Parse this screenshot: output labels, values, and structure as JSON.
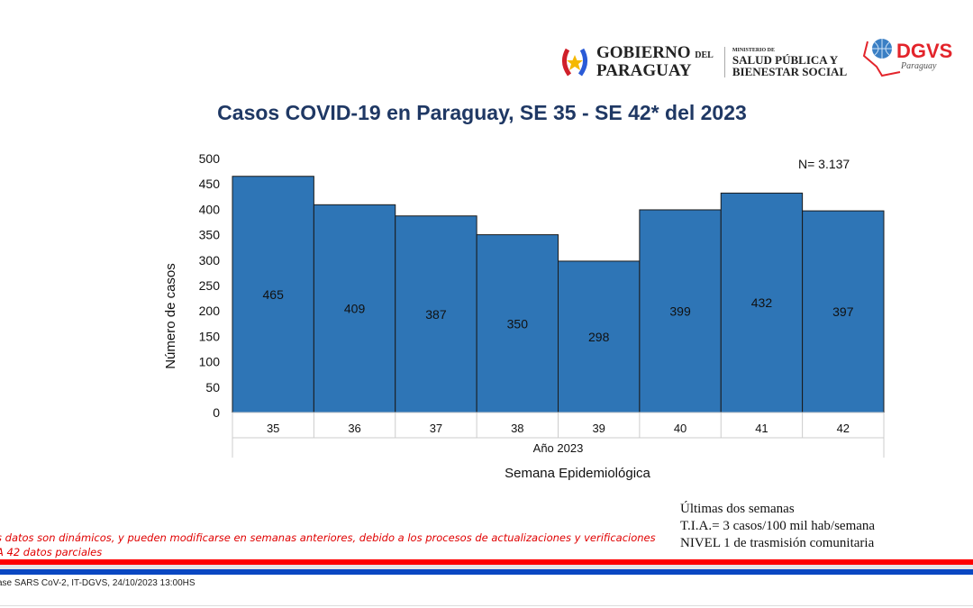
{
  "header": {
    "gov_logo": {
      "line1": "GOBIERNO",
      "line1b": "DEL",
      "line2": "PARAGUAY"
    },
    "ministry": {
      "small": "MINISTERIO DE",
      "line1": "SALUD PÚBLICA Y",
      "line2": "BIENESTAR SOCIAL"
    },
    "dgvs_logo": {
      "name": "DGVS",
      "sub": "Paraguay"
    }
  },
  "chart_data": {
    "type": "bar",
    "title": "Casos COVID-19 en Paraguay, SE 35 - SE 42* del  2023",
    "categories": [
      "35",
      "36",
      "37",
      "38",
      "39",
      "40",
      "41",
      "42"
    ],
    "values": [
      465,
      409,
      387,
      350,
      298,
      399,
      432,
      397
    ],
    "data_labels": [
      "465",
      "409",
      "387",
      "350",
      "298",
      "399",
      "432",
      "397"
    ],
    "ylabel": "Número de casos",
    "xlabel": "Semana Epidemiológica",
    "x_group_label": "Año 2023",
    "ylim": [
      0,
      500
    ],
    "yticks": [
      "0",
      "50",
      "100",
      "150",
      "200",
      "250",
      "300",
      "350",
      "400",
      "450",
      "500"
    ],
    "annotation": "N= 3.137",
    "bar_color": "#2e75b6",
    "grid": false
  },
  "notes": {
    "line1": "s datos son dinámicos, y pueden modificarse en semanas anteriores, debido a los procesos de actualizaciones y verificaciones",
    "line2": "A 42 datos parciales"
  },
  "summary": {
    "line1": "Últimas dos semanas",
    "line2": "T.I.A.= 3 casos/100 mil hab/semana",
    "line3": "NIVEL 1 de trasmisión comunitaria"
  },
  "source": "ase SARS CoV-2, IT-DGVS, 24/10/2023 13:00HS"
}
